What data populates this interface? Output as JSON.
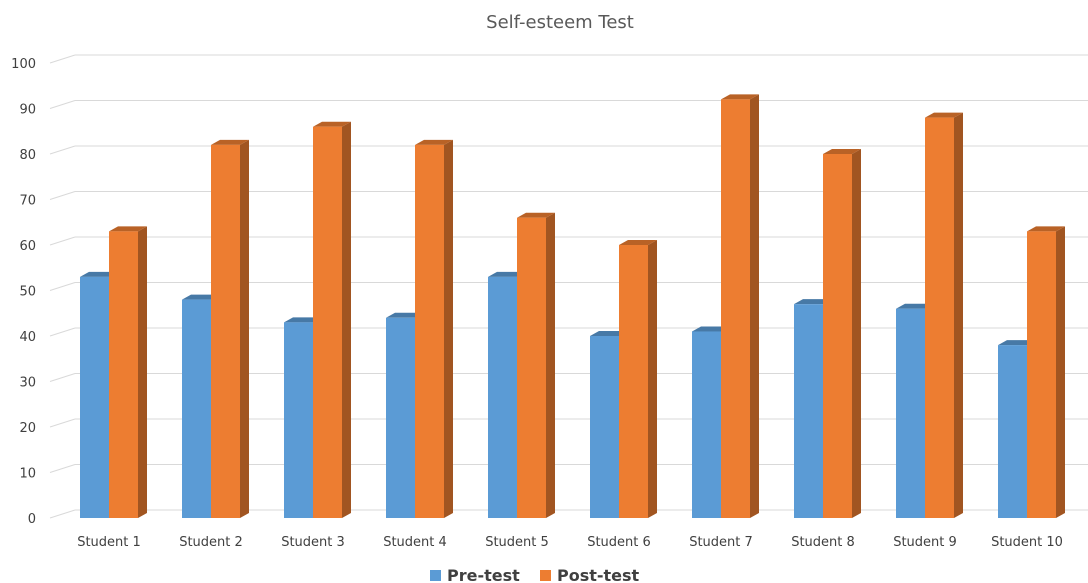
{
  "chart_data": {
    "type": "bar",
    "title": "Self-esteem Test",
    "categories": [
      "Student 1",
      "Student 2",
      "Student 3",
      "Student 4",
      "Student 5",
      "Student 6",
      "Student 7",
      "Student 8",
      "Student 9",
      "Student 10"
    ],
    "series": [
      {
        "name": "Pre-test",
        "color": "#5b9bd5",
        "values": [
          53,
          48,
          43,
          44,
          53,
          40,
          41,
          47,
          46,
          38
        ]
      },
      {
        "name": "Post-test",
        "color": "#ed7d31",
        "values": [
          63,
          82,
          86,
          82,
          66,
          60,
          92,
          80,
          88,
          63
        ]
      }
    ],
    "ylim": [
      0,
      100
    ],
    "yticks": [
      0,
      10,
      20,
      30,
      40,
      50,
      60,
      70,
      80,
      90,
      100
    ],
    "grid": true,
    "legend": "bottom",
    "three_d": true
  }
}
